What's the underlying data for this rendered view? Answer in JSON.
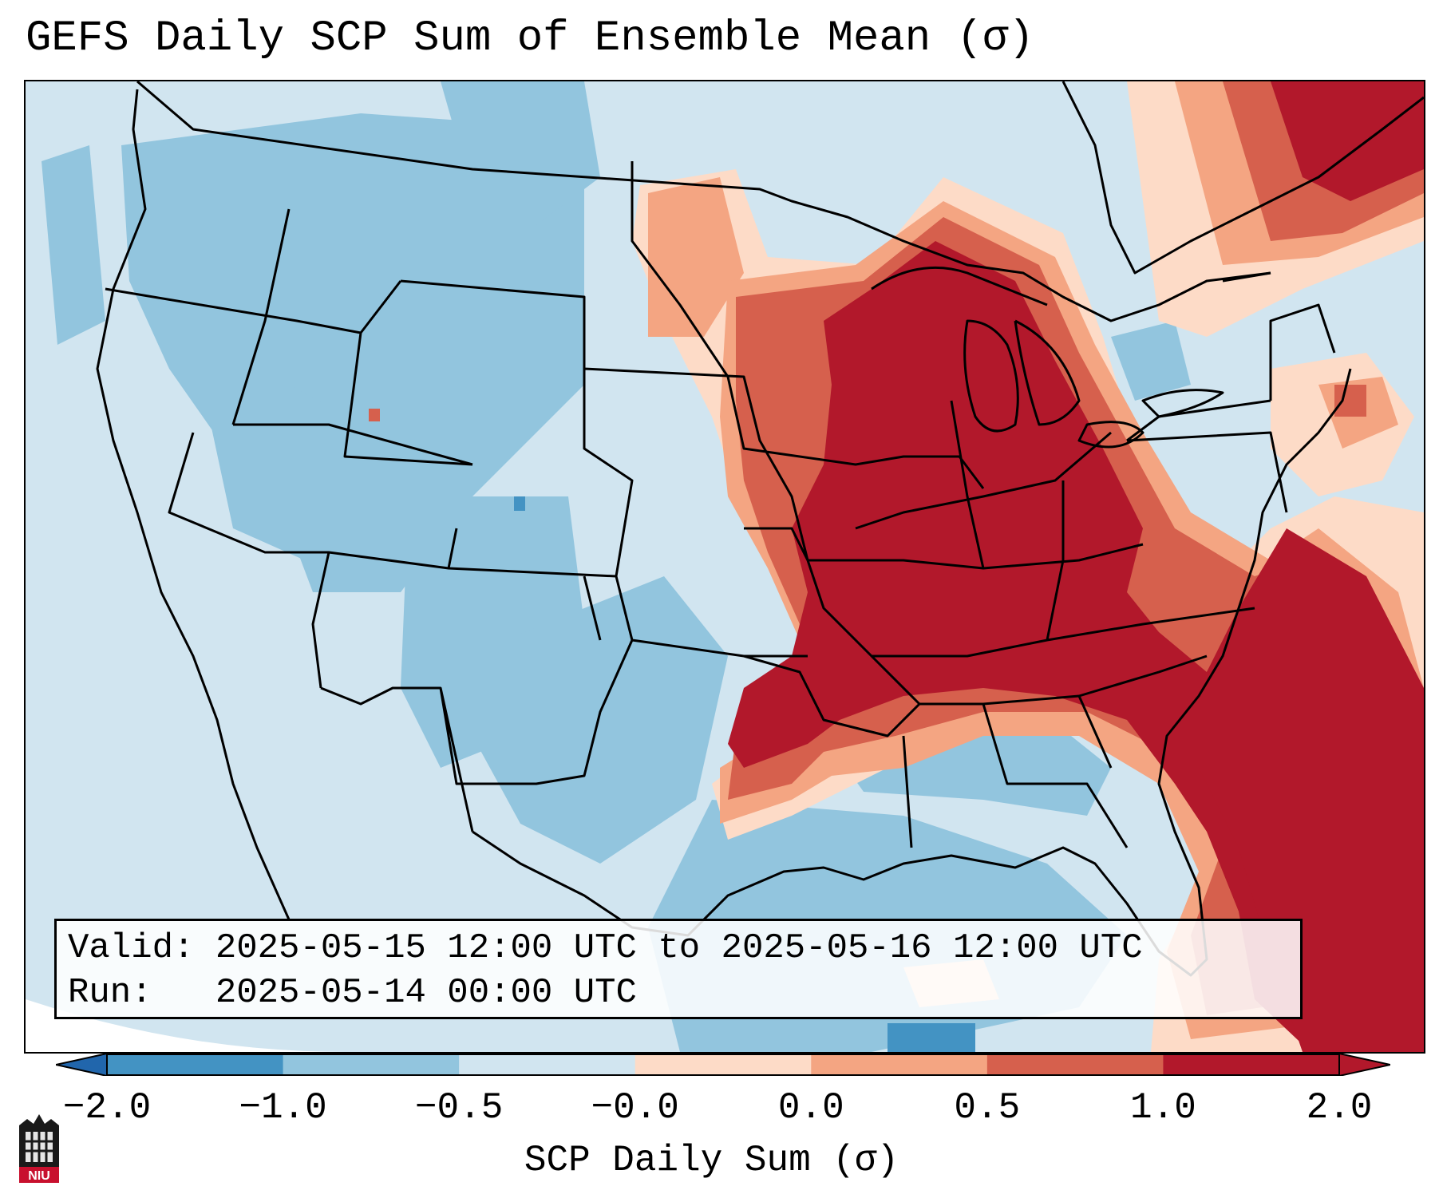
{
  "title": "GEFS Daily SCP Sum of Ensemble Mean (σ)",
  "info": {
    "valid_label": "Valid:",
    "valid_value": "2025-05-15 12:00 UTC to 2025-05-16 12:00 UTC",
    "run_label": "Run:",
    "run_value": "2025-05-14 00:00 UTC"
  },
  "colorbar": {
    "label": "SCP Daily Sum (σ)",
    "ticks": [
      "−2.0",
      "−1.0",
      "−0.5",
      "−0.0",
      "0.0",
      "0.5",
      "1.0",
      "2.0"
    ],
    "colors": [
      "#4393c3",
      "#92c5de",
      "#d1e5f0",
      "#fddbc7",
      "#f4a582",
      "#d6604d",
      "#b2182b"
    ],
    "extend_low_color": "#2166ac",
    "extend_high_color": "#b2182b"
  },
  "logo": {
    "text": "NIU",
    "icon": "niu-logo-icon"
  }
}
